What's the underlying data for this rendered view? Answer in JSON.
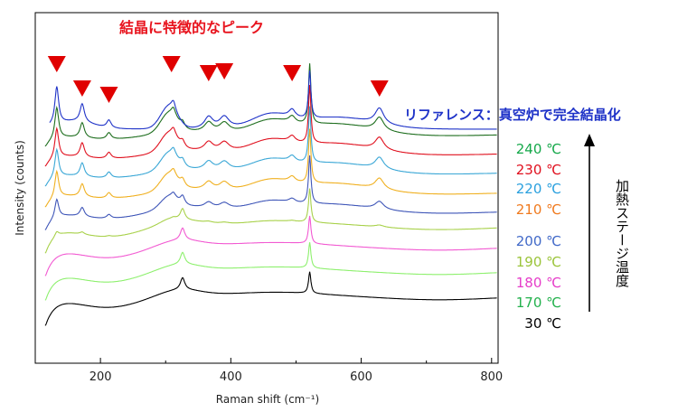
{
  "chart_data": {
    "type": "line",
    "title": "結晶に特徴的なピーク",
    "xlabel": "Raman shift (cm⁻¹)",
    "ylabel": "Intensity (counts)",
    "xlim": [
      100,
      810
    ],
    "xticks": [
      200,
      400,
      600,
      800
    ],
    "reference_label": "リファレンス：真空炉で完全結晶化",
    "heating_label": "加熱ステージ温度",
    "marker_peaks_x": [
      133,
      172,
      213,
      309,
      366,
      390,
      494,
      628
    ],
    "colors": {
      "title": "#e8141e",
      "reference": "#1f33c8",
      "marker": "#e00000",
      "frame": "#000000"
    },
    "series": [
      {
        "name": "30 ℃",
        "color": "#000000",
        "label_color": "#000000",
        "crystalline": false,
        "base": 360,
        "amp": 0.0,
        "c": 0.0
      },
      {
        "name": "170 ℃",
        "color": "#8ef06e",
        "label_color": "#22b14c",
        "crystalline": false,
        "base": 332,
        "amp": 0.1,
        "c": 0.0
      },
      {
        "name": "180 ℃",
        "color": "#f25ad2",
        "label_color": "#e63cc9",
        "crystalline": false,
        "base": 305,
        "amp": 0.15,
        "c": 0.0
      },
      {
        "name": "190 ℃",
        "color": "#a8d14a",
        "label_color": "#9bc43a",
        "crystalline": false,
        "base": 280,
        "amp": 0.3,
        "c": 0.15
      },
      {
        "name": "200 ℃",
        "color": "#3f56b8",
        "label_color": "#4169c8",
        "crystalline": true,
        "base": 255,
        "amp": 0.65,
        "c": 0.6
      },
      {
        "name": "210 ℃",
        "color": "#f0b020",
        "label_color": "#f07a1e",
        "crystalline": true,
        "base": 230,
        "amp": 0.8,
        "c": 0.85
      },
      {
        "name": "220 ℃",
        "color": "#3aa7d6",
        "label_color": "#2aa0de",
        "crystalline": true,
        "base": 207,
        "amp": 0.85,
        "c": 0.9
      },
      {
        "name": "230 ℃",
        "color": "#e0101e",
        "label_color": "#e0101e",
        "crystalline": true,
        "base": 185,
        "amp": 0.9,
        "c": 0.95
      },
      {
        "name": "240 ℃",
        "color": "#1e6e1e",
        "label_color": "#15a84a",
        "crystalline": true,
        "base": 163,
        "amp": 0.95,
        "c": 1.0
      },
      {
        "name": "リファレンス",
        "color": "#1f33c8",
        "label_color": "#1f33c8",
        "crystalline": true,
        "base": 143,
        "amp": 1.0,
        "c": 1.05,
        "reference": true
      }
    ]
  }
}
